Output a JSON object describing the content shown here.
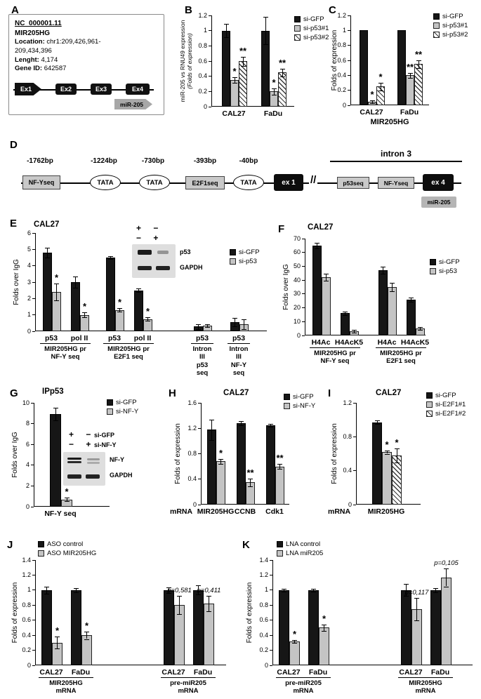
{
  "letters": {
    "A": "A",
    "B": "B",
    "C": "C",
    "D": "D",
    "E": "E",
    "F": "F",
    "G": "G",
    "H": "H",
    "I": "I",
    "J": "J",
    "K": "K"
  },
  "panels": {
    "A": {
      "accession": "NC_000001.11",
      "gene": "MIR205HG",
      "location_label": "Location:",
      "location_value": "chr1:209,426,961-209,434,396",
      "length_label": "Lenght:",
      "length_value": "4,174",
      "gene_id_label": "Gene ID:",
      "gene_id_value": "642587",
      "exons": [
        "Ex1",
        "Ex2",
        "Ex3",
        "Ex4"
      ],
      "mir_label": "miR-205"
    },
    "D": {
      "pos1": "-1762bp",
      "seq1": "NF-Yseq",
      "pos2": "-1224bp",
      "tata1": "TATA",
      "pos3": "-730bp",
      "tata2": "TATA",
      "pos4": "-393bp",
      "seq2": "E2F1seq",
      "pos5": "-40bp",
      "tata3": "TATA",
      "exon1": "ex 1",
      "break": "//",
      "intron_label": "intron 3",
      "p53seq": "p53seq",
      "nfyseq": "NF-Yseq",
      "exon4": "ex 4",
      "mir": "miR-205"
    },
    "E_inset": {
      "row1": "+ −",
      "row2": "− +",
      "bands": [
        "p53",
        "GAPDH"
      ]
    },
    "G_inset": {
      "row1": "+ −",
      "row1_label": "si-GFP",
      "row2": "− +",
      "row2_label": "si-NF-Y",
      "bands": [
        "NF-Y",
        "GAPDH"
      ]
    }
  },
  "chart_data": [
    {
      "id": "B",
      "type": "bar",
      "ylabel": "miR-205 vs RNU49 expression",
      "ylabel2": "(Folds of expression)",
      "ylim": [
        0,
        1.2
      ],
      "yticks": [
        0,
        0.2,
        0.4,
        0.6,
        0.8,
        1,
        1.2
      ],
      "groups": [
        "CAL27",
        "FaDu"
      ],
      "series": [
        {
          "name": "si-GFP",
          "style": "black",
          "values": [
            1.0,
            1.0
          ],
          "errors": [
            0.09,
            0.18
          ],
          "sig": [
            "",
            ""
          ]
        },
        {
          "name": "si-p53#1",
          "style": "gray",
          "values": [
            0.35,
            0.2
          ],
          "errors": [
            0.04,
            0.04
          ],
          "sig": [
            "*",
            "*"
          ]
        },
        {
          "name": "si-p53#2",
          "style": "hatch",
          "values": [
            0.6,
            0.45
          ],
          "errors": [
            0.06,
            0.05
          ],
          "sig": [
            "**",
            "**"
          ]
        }
      ],
      "legend_pos": "top-right"
    },
    {
      "id": "C",
      "type": "bar",
      "ylabel": "Folds of expression",
      "ylim": [
        0,
        1.2
      ],
      "yticks": [
        0,
        0.2,
        0.4,
        0.6,
        0.8,
        1,
        1.2
      ],
      "groups": [
        "CAL27",
        "FaDu"
      ],
      "xlabel": "MIR205HG",
      "series": [
        {
          "name": "si-GFP",
          "style": "black",
          "values": [
            1.0,
            1.0
          ],
          "errors": [
            0,
            0
          ],
          "sig": [
            "",
            ""
          ]
        },
        {
          "name": "si-p53#1",
          "style": "gray",
          "values": [
            0.05,
            0.4
          ],
          "errors": [
            0.02,
            0.03
          ],
          "sig": [
            "*",
            "**"
          ]
        },
        {
          "name": "si-p53#2",
          "style": "hatch",
          "values": [
            0.25,
            0.55
          ],
          "errors": [
            0.05,
            0.05
          ],
          "sig": [
            "*",
            "**"
          ]
        }
      ],
      "legend_pos": "top-right"
    },
    {
      "id": "E",
      "type": "bar",
      "title": "CAL27",
      "ylabel": "Folds over IgG",
      "ylim": [
        0,
        6
      ],
      "yticks": [
        0,
        1,
        2,
        3,
        4,
        5,
        6
      ],
      "groups": [
        "p53",
        "pol II",
        "p53",
        "pol II",
        "p53",
        "p53"
      ],
      "cluster_labels": [
        {
          "text": "MIR205HG pr\nNF-Y seq",
          "from": 0,
          "to": 1
        },
        {
          "text": "MIR205HG pr\nE2F1 seq",
          "from": 2,
          "to": 3
        },
        {
          "text": "Intron III\np53 seq",
          "from": 4,
          "to": 4
        },
        {
          "text": "Intron III\nNF-Y seq",
          "from": 5,
          "to": 5
        }
      ],
      "series": [
        {
          "name": "si-GFP",
          "style": "black",
          "values": [
            4.8,
            3.0,
            4.5,
            2.5,
            0.3,
            0.55
          ],
          "errors": [
            0.3,
            0.35,
            0.08,
            0.12,
            0.15,
            0.25
          ],
          "sig": [
            "",
            "",
            "",
            "",
            "",
            ""
          ]
        },
        {
          "name": "si-p53",
          "style": "gray",
          "values": [
            2.4,
            1.0,
            1.3,
            0.75,
            0.35,
            0.45
          ],
          "errors": [
            0.5,
            0.15,
            0.1,
            0.1,
            0.1,
            0.3
          ],
          "sig": [
            "*",
            "*",
            "*",
            "*",
            "",
            ""
          ]
        }
      ],
      "legend_pos": "right"
    },
    {
      "id": "F",
      "type": "bar",
      "title": "CAL27",
      "ylabel": "Folds over IgG",
      "ylim": [
        0,
        70
      ],
      "yticks": [
        0,
        10,
        20,
        30,
        40,
        50,
        60,
        70
      ],
      "groups": [
        "H4Ac",
        "H4AcK5",
        "H4Ac",
        "H4AcK5"
      ],
      "cluster_labels": [
        {
          "text": "MIR205HG pr\nNF-Y seq",
          "from": 0,
          "to": 1
        },
        {
          "text": "MIR205HG pr\nE2F1 seq",
          "from": 2,
          "to": 3
        }
      ],
      "series": [
        {
          "name": "si-GFP",
          "style": "black",
          "values": [
            65,
            16,
            47,
            26
          ],
          "errors": [
            2,
            1.5,
            2.5,
            1.5
          ],
          "sig": [
            "",
            "",
            "",
            ""
          ]
        },
        {
          "name": "si-p53",
          "style": "gray",
          "values": [
            42,
            3,
            35,
            5
          ],
          "errors": [
            2.5,
            1,
            3,
            1
          ],
          "sig": [
            "",
            "",
            "",
            ""
          ]
        }
      ],
      "legend_pos": "right"
    },
    {
      "id": "G",
      "type": "bar",
      "title": "IPp53",
      "ylabel": "Folds over IgG",
      "ylim": [
        0,
        10
      ],
      "yticks": [
        0,
        2,
        4,
        6,
        8,
        10
      ],
      "groups": [
        "NF-Y seq"
      ],
      "series": [
        {
          "name": "si-GFP",
          "style": "black",
          "values": [
            8.9
          ],
          "errors": [
            0.6
          ],
          "sig": [
            ""
          ]
        },
        {
          "name": "si-NF-Y",
          "style": "gray",
          "values": [
            0.7
          ],
          "errors": [
            0.15
          ],
          "sig": [
            "*"
          ]
        }
      ],
      "legend_pos": "top-right"
    },
    {
      "id": "H",
      "type": "bar",
      "title": "CAL27",
      "ylabel": "Folds of expression",
      "ylim": [
        0,
        1.6
      ],
      "yticks": [
        0,
        0.4,
        0.8,
        1.2,
        1.6
      ],
      "groups": [
        "MIR205HG",
        "CCNB",
        "Cdk1"
      ],
      "x_prefix": "mRNA",
      "series": [
        {
          "name": "si-GFP",
          "style": "black",
          "values": [
            1.18,
            1.28,
            1.25
          ],
          "errors": [
            0.16,
            0.03,
            0.02
          ],
          "sig": [
            "",
            "",
            ""
          ]
        },
        {
          "name": "si-NF-Y",
          "style": "gray",
          "values": [
            0.68,
            0.35,
            0.6
          ],
          "errors": [
            0.04,
            0.06,
            0.04
          ],
          "sig": [
            "*",
            "**",
            "**"
          ]
        }
      ],
      "legend_pos": "top-right"
    },
    {
      "id": "I",
      "type": "bar",
      "title": "CAL27",
      "ylabel": "Folds of expression",
      "ylim": [
        0,
        1.2
      ],
      "yticks": [
        0,
        0.4,
        0.8,
        1.2
      ],
      "groups": [
        "MIR205HG"
      ],
      "x_prefix": "mRNA",
      "series": [
        {
          "name": "si-GFP",
          "style": "black",
          "values": [
            0.97
          ],
          "errors": [
            0.02
          ],
          "sig": [
            ""
          ]
        },
        {
          "name": "si-E2F1#1",
          "style": "gray",
          "values": [
            0.62
          ],
          "errors": [
            0.02
          ],
          "sig": [
            "*"
          ]
        },
        {
          "name": "si-E2F1#2",
          "style": "hatch",
          "values": [
            0.58
          ],
          "errors": [
            0.08
          ],
          "sig": [
            "*"
          ]
        }
      ],
      "legend_pos": "top-right"
    },
    {
      "id": "J",
      "type": "bar",
      "ylabel": "Folds of expression",
      "ylim": [
        0,
        1.4
      ],
      "yticks": [
        0,
        0.2,
        0.4,
        0.6,
        0.8,
        1,
        1.2,
        1.4
      ],
      "groups": [
        "CAL27",
        "FaDu",
        "CAL27",
        "FaDu"
      ],
      "cluster_labels": [
        {
          "text": "MIR205HG mRNA",
          "from": 0,
          "to": 1
        },
        {
          "text": "pre-miR205 mRNA",
          "from": 2,
          "to": 3
        }
      ],
      "series": [
        {
          "name": "ASO control",
          "style": "black",
          "values": [
            1.0,
            1.0,
            1.0,
            1.0
          ],
          "errors": [
            0.05,
            0.03,
            0.04,
            0.06
          ],
          "sig": [
            "",
            "",
            "",
            ""
          ]
        },
        {
          "name": "ASO MIR205HG",
          "style": "gray",
          "values": [
            0.3,
            0.4,
            0.8,
            0.82
          ],
          "errors": [
            0.08,
            0.05,
            0.12,
            0.1
          ],
          "sig": [
            "*",
            "*",
            "p=0,581",
            "p=0,411"
          ]
        }
      ],
      "legend_pos": "top-left"
    },
    {
      "id": "K",
      "type": "bar",
      "ylabel": "Folds of expression",
      "ylim": [
        0,
        1.4
      ],
      "yticks": [
        0,
        0.2,
        0.4,
        0.6,
        0.8,
        1,
        1.2,
        1.4
      ],
      "groups": [
        "CAL27",
        "FaDu",
        "CAL27",
        "FaDu"
      ],
      "cluster_labels": [
        {
          "text": "pre-miR205 mRNA",
          "from": 0,
          "to": 1
        },
        {
          "text": "MIR205HG mRNA",
          "from": 2,
          "to": 3
        }
      ],
      "series": [
        {
          "name": "LNA control",
          "style": "black",
          "values": [
            1.0,
            1.0,
            1.0,
            1.0
          ],
          "errors": [
            0.02,
            0.02,
            0.08,
            0.03
          ],
          "sig": [
            "",
            "",
            "",
            ""
          ]
        },
        {
          "name": "LNA miR205",
          "style": "gray",
          "values": [
            0.32,
            0.5,
            0.75,
            1.17
          ],
          "errors": [
            0.02,
            0.04,
            0.15,
            0.12
          ],
          "sig": [
            "*",
            "*",
            "p=0,117",
            "p=0,105"
          ]
        }
      ],
      "legend_pos": "top-left"
    }
  ]
}
